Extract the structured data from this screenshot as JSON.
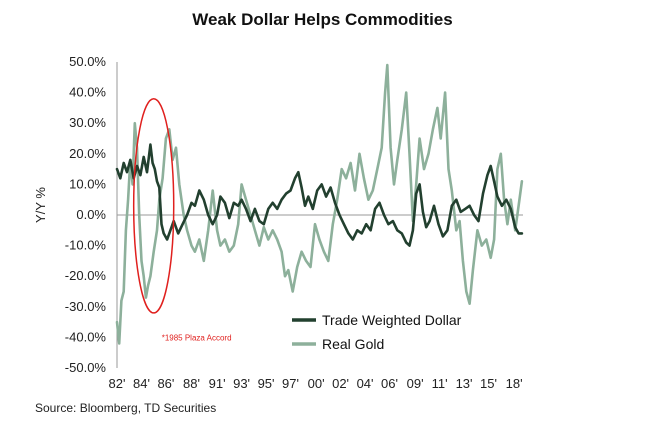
{
  "header": {
    "title": "Weak Dollar Helps Commodities"
  },
  "footer": {
    "source": "Source: Bloomberg, TD Securities"
  },
  "chart_data": {
    "type": "line",
    "title": "Weak Dollar Helps Commodities",
    "xlabel": "",
    "ylabel": "Y/Y %",
    "ylim": [
      -50,
      50
    ],
    "xlim": [
      1982,
      2018.5
    ],
    "y_ticks": [
      "50.0%",
      "40.0%",
      "30.0%",
      "20.0%",
      "10.0%",
      "0.0%",
      "-10.0%",
      "-20.0%",
      "-30.0%",
      "-40.0%",
      "-50.0%"
    ],
    "y_tick_values": [
      50,
      40,
      30,
      20,
      10,
      0,
      -10,
      -20,
      -30,
      -40,
      -50
    ],
    "x_ticks": [
      "82'",
      "84'",
      "86'",
      "88'",
      "91'",
      "93'",
      "95'",
      "97'",
      "00'",
      "02'",
      "04'",
      "06'",
      "09'",
      "11'",
      "13'",
      "15'",
      "18'"
    ],
    "x_tick_values": [
      1982,
      1984.2,
      1986.4,
      1988.7,
      1991,
      1993.2,
      1995.4,
      1997.6,
      1999.9,
      2002.1,
      2004.3,
      2006.5,
      2008.8,
      2011,
      2013.2,
      2015.4,
      2017.7
    ],
    "legend_position": "bottom-right",
    "grid": false,
    "annotation": {
      "text": "*1985 Plaza Accord",
      "x": 1985.3,
      "y": -40,
      "color": "#e0201e"
    },
    "highlight_ellipse": {
      "center_x": 1985.3,
      "center_y": 3,
      "rx_years": 1.8,
      "ry_pct": 35,
      "color": "#e0201e"
    },
    "series": [
      {
        "name": "Trade Weighted Dollar",
        "color": "#22402f",
        "points": [
          [
            1982.0,
            15
          ],
          [
            1982.3,
            12
          ],
          [
            1982.6,
            17
          ],
          [
            1982.9,
            14
          ],
          [
            1983.2,
            18
          ],
          [
            1983.5,
            12
          ],
          [
            1983.8,
            16
          ],
          [
            1984.1,
            13
          ],
          [
            1984.4,
            19
          ],
          [
            1984.7,
            14
          ],
          [
            1985.0,
            23
          ],
          [
            1985.2,
            17
          ],
          [
            1985.4,
            15
          ],
          [
            1985.6,
            11
          ],
          [
            1985.8,
            9
          ],
          [
            1986.0,
            -3
          ],
          [
            1986.2,
            -6
          ],
          [
            1986.5,
            -8
          ],
          [
            1986.8,
            -5
          ],
          [
            1987.1,
            -2
          ],
          [
            1987.5,
            -6
          ],
          [
            1987.9,
            -3
          ],
          [
            1988.3,
            0
          ],
          [
            1988.7,
            4
          ],
          [
            1989.0,
            3
          ],
          [
            1989.4,
            8
          ],
          [
            1989.8,
            5
          ],
          [
            1990.2,
            0
          ],
          [
            1990.6,
            -3
          ],
          [
            1991.0,
            0
          ],
          [
            1991.3,
            6
          ],
          [
            1991.7,
            4
          ],
          [
            1992.1,
            -1
          ],
          [
            1992.5,
            4
          ],
          [
            1992.9,
            3
          ],
          [
            1993.2,
            5
          ],
          [
            1993.6,
            2
          ],
          [
            1994.0,
            -2
          ],
          [
            1994.4,
            2
          ],
          [
            1994.8,
            -2
          ],
          [
            1995.2,
            -3
          ],
          [
            1995.6,
            2
          ],
          [
            1996.0,
            4
          ],
          [
            1996.4,
            2
          ],
          [
            1996.8,
            5
          ],
          [
            1997.2,
            7
          ],
          [
            1997.6,
            8
          ],
          [
            1998.0,
            12
          ],
          [
            1998.3,
            14
          ],
          [
            1998.6,
            9
          ],
          [
            1998.9,
            3
          ],
          [
            1999.2,
            6
          ],
          [
            1999.6,
            2
          ],
          [
            2000.0,
            8
          ],
          [
            2000.4,
            10
          ],
          [
            2000.8,
            6
          ],
          [
            2001.2,
            9
          ],
          [
            2001.6,
            4
          ],
          [
            2002.0,
            0
          ],
          [
            2002.4,
            -3
          ],
          [
            2002.8,
            -6
          ],
          [
            2003.2,
            -8
          ],
          [
            2003.6,
            -5
          ],
          [
            2004.0,
            -6
          ],
          [
            2004.4,
            -3
          ],
          [
            2004.8,
            -5
          ],
          [
            2005.2,
            2
          ],
          [
            2005.6,
            4
          ],
          [
            2006.0,
            0
          ],
          [
            2006.4,
            -3
          ],
          [
            2006.8,
            -2
          ],
          [
            2007.2,
            -5
          ],
          [
            2007.6,
            -6
          ],
          [
            2008.0,
            -9
          ],
          [
            2008.3,
            -10
          ],
          [
            2008.6,
            -5
          ],
          [
            2008.9,
            7
          ],
          [
            2009.2,
            10
          ],
          [
            2009.5,
            1
          ],
          [
            2009.8,
            -4
          ],
          [
            2010.1,
            -2
          ],
          [
            2010.5,
            3
          ],
          [
            2010.9,
            -3
          ],
          [
            2011.3,
            -7
          ],
          [
            2011.7,
            -5
          ],
          [
            2012.1,
            3
          ],
          [
            2012.5,
            5
          ],
          [
            2012.9,
            1
          ],
          [
            2013.3,
            2
          ],
          [
            2013.7,
            3
          ],
          [
            2014.1,
            0
          ],
          [
            2014.5,
            -2
          ],
          [
            2014.9,
            7
          ],
          [
            2015.3,
            13
          ],
          [
            2015.6,
            16
          ],
          [
            2015.9,
            11
          ],
          [
            2016.2,
            6
          ],
          [
            2016.6,
            3
          ],
          [
            2017.0,
            5
          ],
          [
            2017.4,
            2
          ],
          [
            2017.8,
            -4
          ],
          [
            2018.1,
            -6
          ],
          [
            2018.4,
            -6
          ]
        ]
      },
      {
        "name": "Real Gold",
        "color": "#8db09b",
        "points": [
          [
            1982.0,
            -35
          ],
          [
            1982.2,
            -42
          ],
          [
            1982.4,
            -28
          ],
          [
            1982.6,
            -25
          ],
          [
            1982.8,
            -5
          ],
          [
            1983.0,
            5
          ],
          [
            1983.2,
            18
          ],
          [
            1983.4,
            10
          ],
          [
            1983.6,
            30
          ],
          [
            1983.8,
            22
          ],
          [
            1984.0,
            0
          ],
          [
            1984.2,
            -15
          ],
          [
            1984.4,
            -20
          ],
          [
            1984.6,
            -27
          ],
          [
            1984.8,
            -23
          ],
          [
            1985.0,
            -20
          ],
          [
            1985.3,
            -12
          ],
          [
            1985.6,
            -5
          ],
          [
            1985.8,
            5
          ],
          [
            1986.1,
            12
          ],
          [
            1986.4,
            25
          ],
          [
            1986.7,
            28
          ],
          [
            1987.0,
            18
          ],
          [
            1987.3,
            22
          ],
          [
            1987.6,
            10
          ],
          [
            1988.0,
            0
          ],
          [
            1988.3,
            -5
          ],
          [
            1988.7,
            -10
          ],
          [
            1989.0,
            -12
          ],
          [
            1989.4,
            -8
          ],
          [
            1989.8,
            -15
          ],
          [
            1990.2,
            -5
          ],
          [
            1990.6,
            8
          ],
          [
            1991.0,
            -5
          ],
          [
            1991.3,
            -10
          ],
          [
            1991.7,
            -8
          ],
          [
            1992.1,
            -12
          ],
          [
            1992.5,
            -10
          ],
          [
            1992.9,
            -3
          ],
          [
            1993.2,
            10
          ],
          [
            1993.6,
            5
          ],
          [
            1994.0,
            0
          ],
          [
            1994.4,
            -5
          ],
          [
            1994.8,
            -10
          ],
          [
            1995.2,
            -4
          ],
          [
            1995.6,
            -8
          ],
          [
            1996.0,
            -5
          ],
          [
            1996.4,
            -8
          ],
          [
            1996.8,
            -12
          ],
          [
            1997.1,
            -20
          ],
          [
            1997.4,
            -18
          ],
          [
            1997.8,
            -25
          ],
          [
            1998.2,
            -17
          ],
          [
            1998.6,
            -12
          ],
          [
            1999.0,
            -15
          ],
          [
            1999.4,
            -17
          ],
          [
            1999.8,
            -3
          ],
          [
            2000.2,
            -8
          ],
          [
            2000.6,
            -12
          ],
          [
            2001.0,
            -15
          ],
          [
            2001.4,
            -3
          ],
          [
            2001.8,
            5
          ],
          [
            2002.2,
            15
          ],
          [
            2002.6,
            12
          ],
          [
            2003.0,
            17
          ],
          [
            2003.4,
            8
          ],
          [
            2003.8,
            20
          ],
          [
            2004.2,
            12
          ],
          [
            2004.6,
            5
          ],
          [
            2005.0,
            8
          ],
          [
            2005.4,
            15
          ],
          [
            2005.8,
            22
          ],
          [
            2006.1,
            40
          ],
          [
            2006.3,
            49
          ],
          [
            2006.6,
            22
          ],
          [
            2006.9,
            10
          ],
          [
            2007.2,
            18
          ],
          [
            2007.6,
            28
          ],
          [
            2008.0,
            40
          ],
          [
            2008.3,
            20
          ],
          [
            2008.6,
            -2
          ],
          [
            2008.9,
            10
          ],
          [
            2009.2,
            25
          ],
          [
            2009.6,
            15
          ],
          [
            2010.0,
            20
          ],
          [
            2010.4,
            28
          ],
          [
            2010.8,
            35
          ],
          [
            2011.1,
            25
          ],
          [
            2011.5,
            40
          ],
          [
            2011.8,
            15
          ],
          [
            2012.1,
            8
          ],
          [
            2012.5,
            -5
          ],
          [
            2012.8,
            -2
          ],
          [
            2013.1,
            -15
          ],
          [
            2013.4,
            -25
          ],
          [
            2013.7,
            -29
          ],
          [
            2014.0,
            -18
          ],
          [
            2014.4,
            -5
          ],
          [
            2014.8,
            -10
          ],
          [
            2015.2,
            -8
          ],
          [
            2015.6,
            -14
          ],
          [
            2015.9,
            -8
          ],
          [
            2016.2,
            15
          ],
          [
            2016.5,
            20
          ],
          [
            2016.8,
            5
          ],
          [
            2017.1,
            -3
          ],
          [
            2017.4,
            5
          ],
          [
            2017.8,
            -5
          ],
          [
            2018.1,
            3
          ],
          [
            2018.4,
            11
          ]
        ]
      }
    ]
  }
}
